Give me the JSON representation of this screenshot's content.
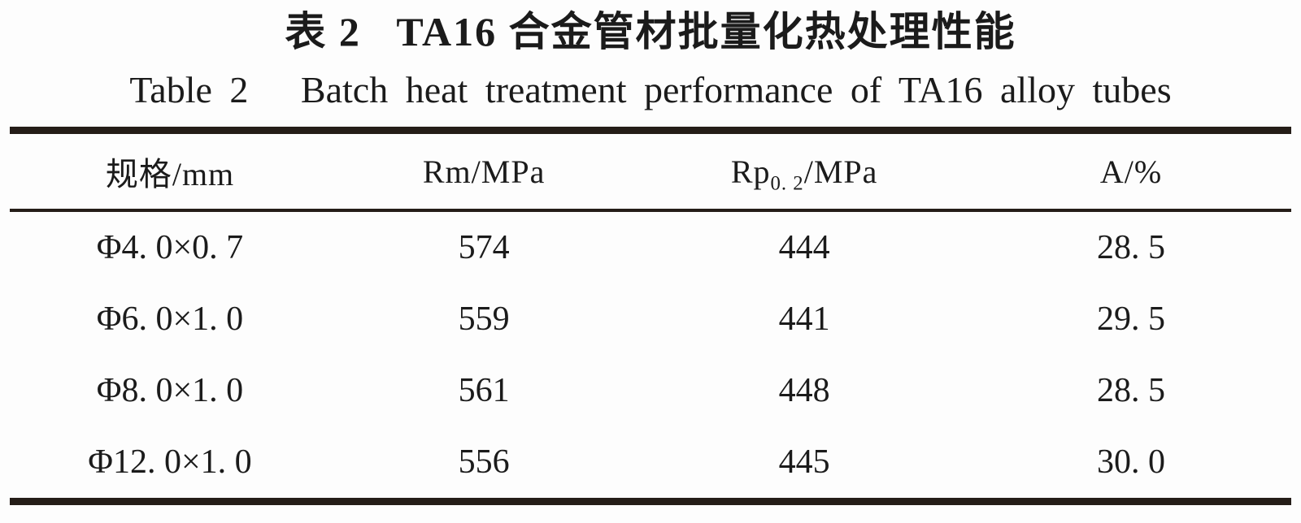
{
  "page": {
    "title_cn": "表 2   TA16 合金管材批量化热处理性能",
    "title_en": "Table 2   Batch heat treatment performance of TA16 alloy tubes"
  },
  "table": {
    "columns": [
      {
        "label": "规格/mm"
      },
      {
        "label": "Rm/MPa"
      },
      {
        "label_base": "Rp",
        "label_sub": "0. 2",
        "label_rest": "/MPa"
      },
      {
        "label": "A/%"
      }
    ],
    "rows": [
      [
        "Φ4. 0×0. 7",
        "574",
        "444",
        "28. 5"
      ],
      [
        "Φ6. 0×1. 0",
        "559",
        "441",
        "29. 5"
      ],
      [
        "Φ8. 0×1. 0",
        "561",
        "448",
        "28. 5"
      ],
      [
        "Φ12. 0×1. 0",
        "556",
        "445",
        "30. 0"
      ]
    ]
  },
  "colors": {
    "rule": "#251d18",
    "text": "#1b1b1b",
    "background": "#fdfdfd"
  }
}
